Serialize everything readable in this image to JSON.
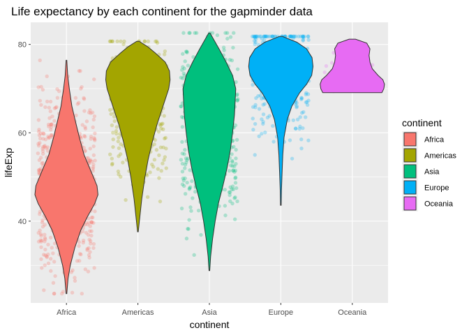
{
  "chart_data": {
    "type": "violin",
    "title": "Life expectancy by each continent for the gapminder data",
    "xlabel": "continent",
    "ylabel": "lifeExp",
    "categories": [
      "Africa",
      "Americas",
      "Asia",
      "Europe",
      "Oceania"
    ],
    "ylim": [
      21.5,
      85.0
    ],
    "yticks": [
      40,
      60,
      80
    ],
    "grid": true,
    "legend": {
      "title": "continent",
      "position": "right"
    },
    "colors": {
      "Africa": "#F8766D",
      "Americas": "#A3A500",
      "Asia": "#00BF7D",
      "Europe": "#00B0F6",
      "Oceania": "#E76BF3"
    },
    "violins": [
      {
        "name": "Africa",
        "min": 23.6,
        "max": 76.4,
        "profile": [
          [
            23.6,
            0.01
          ],
          [
            27,
            0.05
          ],
          [
            30,
            0.12
          ],
          [
            34,
            0.26
          ],
          [
            38,
            0.45
          ],
          [
            41,
            0.65
          ],
          [
            44,
            0.88
          ],
          [
            46,
            0.98
          ],
          [
            48,
            0.95
          ],
          [
            51,
            0.78
          ],
          [
            55,
            0.55
          ],
          [
            59,
            0.4
          ],
          [
            62,
            0.3
          ],
          [
            66,
            0.17
          ],
          [
            70,
            0.09
          ],
          [
            73,
            0.04
          ],
          [
            76.4,
            0.01
          ]
        ]
      },
      {
        "name": "Americas",
        "min": 37.6,
        "max": 80.7,
        "profile": [
          [
            37.6,
            0.01
          ],
          [
            41,
            0.06
          ],
          [
            45,
            0.12
          ],
          [
            50,
            0.22
          ],
          [
            54,
            0.32
          ],
          [
            58,
            0.45
          ],
          [
            62,
            0.6
          ],
          [
            66,
            0.78
          ],
          [
            70,
            0.96
          ],
          [
            72,
            1.0
          ],
          [
            74,
            0.98
          ],
          [
            76,
            0.85
          ],
          [
            78,
            0.55
          ],
          [
            79.5,
            0.3
          ],
          [
            80.7,
            0.04
          ]
        ]
      },
      {
        "name": "Asia",
        "min": 28.8,
        "max": 82.6,
        "profile": [
          [
            28.8,
            0.01
          ],
          [
            32,
            0.04
          ],
          [
            36,
            0.1
          ],
          [
            40,
            0.18
          ],
          [
            44,
            0.28
          ],
          [
            48,
            0.42
          ],
          [
            52,
            0.55
          ],
          [
            56,
            0.65
          ],
          [
            60,
            0.72
          ],
          [
            64,
            0.78
          ],
          [
            67,
            0.8
          ],
          [
            70,
            0.82
          ],
          [
            73,
            0.72
          ],
          [
            76,
            0.52
          ],
          [
            79,
            0.3
          ],
          [
            82.6,
            0.02
          ]
        ]
      },
      {
        "name": "Europe",
        "min": 43.6,
        "max": 81.8,
        "profile": [
          [
            43.6,
            0.01
          ],
          [
            47,
            0.02
          ],
          [
            51,
            0.04
          ],
          [
            55,
            0.06
          ],
          [
            59,
            0.1
          ],
          [
            63,
            0.2
          ],
          [
            66,
            0.34
          ],
          [
            69,
            0.58
          ],
          [
            71,
            0.8
          ],
          [
            73,
            0.96
          ],
          [
            75,
            1.0
          ],
          [
            77,
            0.97
          ],
          [
            79,
            0.8
          ],
          [
            80.5,
            0.5
          ],
          [
            81.8,
            0.05
          ]
        ]
      },
      {
        "name": "Oceania",
        "min": 69.1,
        "max": 81.2,
        "profile": [
          [
            69.1,
            0.92
          ],
          [
            70,
            0.98
          ],
          [
            71,
            1.0
          ],
          [
            72,
            0.95
          ],
          [
            73,
            0.8
          ],
          [
            74.5,
            0.62
          ],
          [
            76,
            0.55
          ],
          [
            77.5,
            0.52
          ],
          [
            79,
            0.55
          ],
          [
            80.3,
            0.45
          ],
          [
            81.2,
            0.1
          ]
        ]
      }
    ],
    "point_distribution": {
      "Africa": {
        "n": 624,
        "range": [
          23.6,
          76.4
        ],
        "center": 48
      },
      "Americas": {
        "n": 300,
        "range": [
          37.6,
          80.7
        ],
        "center": 66
      },
      "Asia": {
        "n": 396,
        "range": [
          28.8,
          82.6
        ],
        "center": 62
      },
      "Europe": {
        "n": 360,
        "range": [
          43.6,
          81.8
        ],
        "center": 73
      },
      "Oceania": {
        "n": 24,
        "range": [
          69.1,
          81.2
        ],
        "center": 74
      }
    }
  }
}
